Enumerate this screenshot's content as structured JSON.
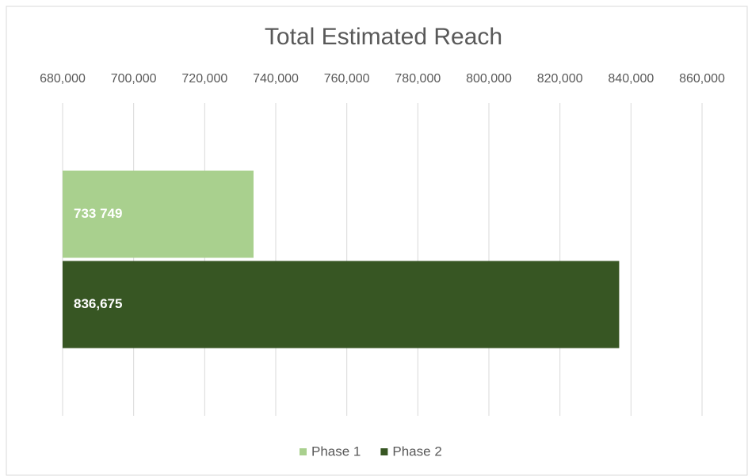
{
  "chart_data": {
    "type": "bar",
    "orientation": "horizontal",
    "title": "Total Estimated Reach",
    "categories": [
      null
    ],
    "series": [
      {
        "name": "Phase 1",
        "color": "#a9d08e",
        "values": [
          733749
        ],
        "value_labels": [
          "733 749"
        ]
      },
      {
        "name": "Phase 2",
        "color": "#375623",
        "values": [
          836675
        ],
        "value_labels": [
          "836,675"
        ]
      }
    ],
    "xlim": [
      680000,
      860000
    ],
    "xticks": [
      {
        "value": 680000,
        "label": "680,000"
      },
      {
        "value": 700000,
        "label": "700,000"
      },
      {
        "value": 720000,
        "label": "720,000"
      },
      {
        "value": 740000,
        "label": "740,000"
      },
      {
        "value": 760000,
        "label": "760,000"
      },
      {
        "value": 780000,
        "label": "780,000"
      },
      {
        "value": 800000,
        "label": "800,000"
      },
      {
        "value": 820000,
        "label": "820,000"
      },
      {
        "value": 840000,
        "label": "840,000"
      },
      {
        "value": 860000,
        "label": "860,000"
      }
    ],
    "grid": true,
    "legend": "bottom"
  }
}
